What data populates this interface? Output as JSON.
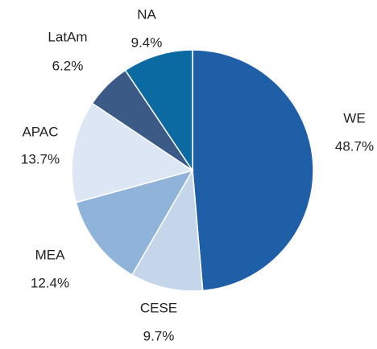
{
  "chart_data": {
    "type": "pie",
    "categories": [
      "WE",
      "CESE",
      "MEA",
      "APAC",
      "LatAm",
      "NA"
    ],
    "values": [
      48.7,
      9.7,
      12.4,
      13.7,
      6.2,
      9.4
    ],
    "value_labels": [
      "48.7%",
      "9.7%",
      "12.4%",
      "13.7%",
      "6.2%",
      "9.4%"
    ],
    "colors": [
      "#1f5fa8",
      "#c5d5ea",
      "#8fb3d9",
      "#dce6f5",
      "#3b5a85",
      "#0a6aa1"
    ]
  }
}
